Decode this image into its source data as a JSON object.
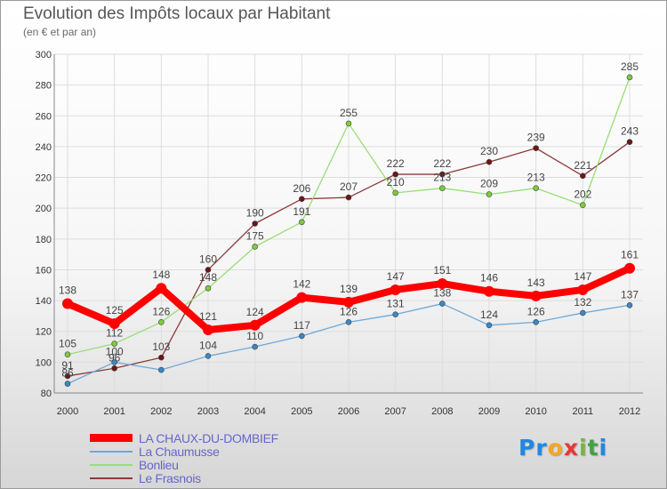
{
  "title": "Evolution des Impôts locaux par Habitant",
  "subtitle": "(en € et par an)",
  "logo": {
    "letters": [
      "P",
      "r",
      "o",
      "x",
      "i",
      "t",
      "i"
    ],
    "colors": [
      "#1e88e5",
      "#1e88e5",
      "#f5a623",
      "#e53935",
      "#7cb342",
      "#43a047",
      "#1e88e5"
    ]
  },
  "chart_data": {
    "type": "line",
    "x": [
      "2000",
      "2001",
      "2002",
      "2003",
      "2004",
      "2005",
      "2006",
      "2007",
      "2008",
      "2009",
      "2010",
      "2011",
      "2012"
    ],
    "ylim": [
      80,
      300
    ],
    "yticks": [
      "80",
      "100",
      "120",
      "140",
      "160",
      "180",
      "200",
      "220",
      "240",
      "260",
      "280",
      "300"
    ],
    "grid": true,
    "legend_position": "bottom-left",
    "series": [
      {
        "name": "LA CHAUX-DU-DOMBIEF",
        "color": "#ff0000",
        "marker_color": "#ff0000",
        "values": [
          138,
          125,
          148,
          121,
          124,
          142,
          139,
          147,
          151,
          146,
          143,
          147,
          161
        ],
        "labels": [
          "138",
          "125",
          "148",
          "121",
          "124",
          "142",
          "139",
          "147",
          "151",
          "146",
          "143",
          "147",
          "161"
        ]
      },
      {
        "name": "La Chaumusse",
        "color": "#6ea8d8",
        "marker_color": "#3a87c9",
        "values": [
          86,
          100,
          95,
          104,
          110,
          117,
          126,
          131,
          138,
          124,
          126,
          132,
          137
        ],
        "labels": [
          "86",
          "100",
          "",
          "104",
          "110",
          "117",
          "126",
          "131",
          "138",
          "124",
          "126",
          "132",
          "137"
        ]
      },
      {
        "name": "Bonlieu",
        "color": "#99dd77",
        "marker_color": "#7ccc3c",
        "values": [
          105,
          112,
          126,
          148,
          175,
          191,
          255,
          210,
          213,
          209,
          213,
          202,
          285
        ],
        "labels": [
          "105",
          "112",
          "126",
          "148",
          "175",
          "191",
          "255",
          "210",
          "213",
          "209",
          "213",
          "202",
          "285"
        ]
      },
      {
        "name": "Le Frasnois",
        "color": "#8b3a3a",
        "marker_color": "#6b1515",
        "values": [
          91,
          96,
          103,
          160,
          190,
          206,
          207,
          222,
          222,
          230,
          239,
          221,
          243
        ],
        "labels": [
          "91",
          "96",
          "103",
          "160",
          "190",
          "206",
          "207",
          "222",
          "222",
          "230",
          "239",
          "221",
          "243"
        ]
      }
    ]
  }
}
